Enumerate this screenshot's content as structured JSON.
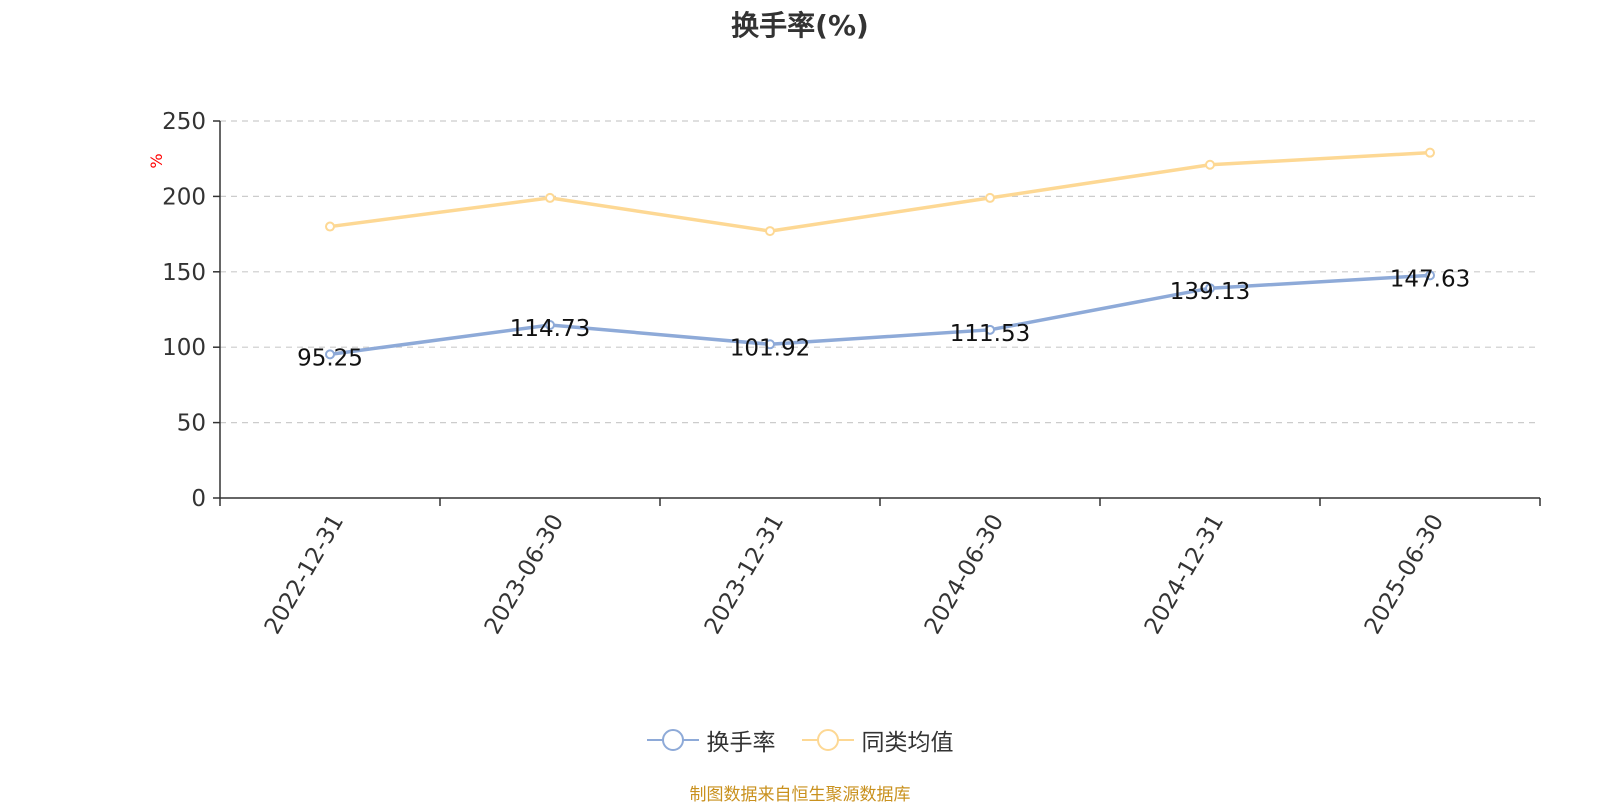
{
  "chart_data": {
    "type": "line",
    "title": "换手率(%)",
    "ylabel": "%",
    "xlabel": "",
    "ylim": [
      0,
      250
    ],
    "yticks": [
      0,
      50,
      100,
      150,
      200,
      250
    ],
    "grid": true,
    "legend_position": "bottom",
    "categories": [
      "2022-12-31",
      "2023-06-30",
      "2023-12-31",
      "2024-06-30",
      "2024-12-31",
      "2025-06-30"
    ],
    "series": [
      {
        "name": "换手率",
        "color": "#8eaad8",
        "values": [
          95.25,
          114.73,
          101.92,
          111.53,
          139.13,
          147.63
        ],
        "data_labels": [
          "95.25",
          "114.73",
          "101.92",
          "111.53",
          "139.13",
          "147.63"
        ]
      },
      {
        "name": "同类均值",
        "color": "#fdd894",
        "values": [
          180,
          199,
          177,
          199,
          221,
          229
        ]
      }
    ]
  },
  "source_note": "制图数据来自恒生聚源数据库",
  "colors": {
    "ylabel": "#ff0000",
    "source_note": "#c9911e",
    "axis": "#333333",
    "grid": "#cccccc"
  }
}
